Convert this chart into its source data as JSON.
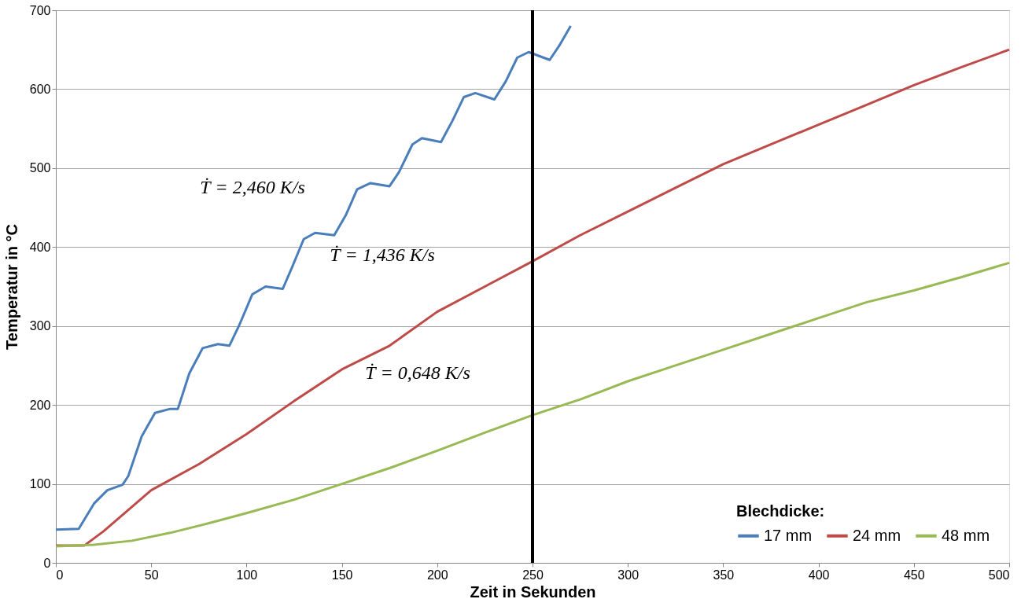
{
  "chart_data": {
    "type": "line",
    "xlabel": "Zeit in Sekunden",
    "ylabel": "Temperatur in °C",
    "legend_title": "Blechdicke:",
    "legend": "bottom right",
    "grid": "y",
    "line_style": "solid",
    "marker": "none",
    "xlim": [
      0,
      500
    ],
    "xticks": [
      0,
      50,
      100,
      150,
      200,
      250,
      300,
      350,
      400,
      450,
      500
    ],
    "ylim": [
      0,
      700
    ],
    "yticks": [
      0,
      100,
      200,
      300,
      400,
      500,
      600,
      700
    ],
    "series": [
      {
        "name": "17 mm",
        "color": "#4a7ebb",
        "x": [
          0,
          12,
          20,
          27,
          35,
          38,
          45,
          52,
          60,
          64,
          70,
          77,
          85,
          91,
          96,
          103,
          110,
          119,
          124,
          130,
          136,
          146,
          152,
          158,
          165,
          175,
          180,
          187,
          192,
          202,
          208,
          214,
          220,
          230,
          236,
          242,
          248,
          259,
          264,
          270
        ],
        "values": [
          42,
          43,
          75,
          92,
          99,
          110,
          160,
          190,
          195,
          195,
          240,
          272,
          277,
          275,
          300,
          340,
          350,
          347,
          375,
          410,
          418,
          415,
          440,
          473,
          481,
          477,
          495,
          530,
          538,
          533,
          560,
          590,
          595,
          587,
          610,
          640,
          647,
          637,
          655,
          680
        ]
      },
      {
        "name": "24 mm",
        "color": "#be4b48",
        "x": [
          0,
          15,
          25,
          50,
          75,
          100,
          125,
          150,
          175,
          200,
          225,
          250,
          275,
          300,
          325,
          350,
          375,
          400,
          425,
          450,
          475,
          500
        ],
        "values": [
          22,
          22,
          40,
          92,
          125,
          163,
          205,
          245,
          275,
          318,
          350,
          382,
          415,
          445,
          475,
          505,
          530,
          555,
          580,
          605,
          628,
          650
        ]
      },
      {
        "name": "48 mm",
        "color": "#98b954",
        "x": [
          0,
          20,
          40,
          60,
          80,
          100,
          125,
          150,
          175,
          200,
          225,
          250,
          275,
          300,
          325,
          350,
          375,
          400,
          425,
          450,
          475,
          500
        ],
        "values": [
          21,
          23,
          28,
          38,
          50,
          63,
          80,
          100,
          120,
          142,
          165,
          187,
          207,
          230,
          250,
          270,
          290,
          310,
          330,
          345,
          362,
          380
        ]
      }
    ],
    "ref_lines": [
      {
        "axis": "x",
        "value": 250,
        "color": "#000000"
      }
    ],
    "annotations": [
      "Ṫ = 2,460 K/s",
      "Ṫ = 1,436 K/s",
      "Ṫ = 0,648 K/s"
    ]
  }
}
